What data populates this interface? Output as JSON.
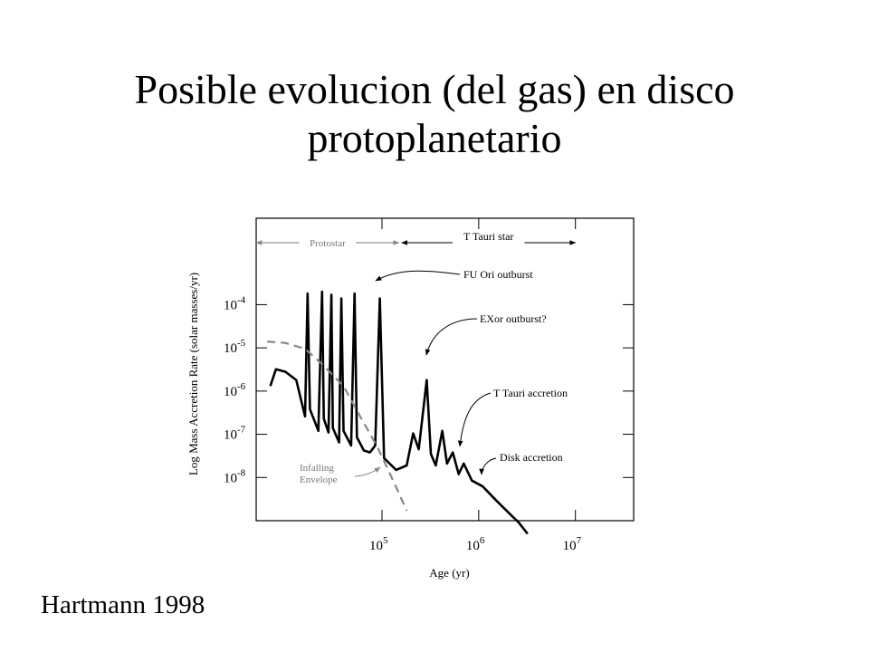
{
  "slide": {
    "title_line1": "Posible evolucion (del gas) en disco",
    "title_line2": "protoplanetario",
    "caption": "Hartmann 1998"
  },
  "chart_data": {
    "type": "line",
    "title": "",
    "xlabel": "Age (yr)",
    "ylabel": "Log Mass Accretion Rate (solar masses/yr)",
    "x_scale": "log",
    "y_scale": "log",
    "x_ticks": [
      {
        "base": "10",
        "exp": "5",
        "value": 100000
      },
      {
        "base": "10",
        "exp": "6",
        "value": 1000000
      },
      {
        "base": "10",
        "exp": "7",
        "value": 10000000
      }
    ],
    "y_ticks": [
      {
        "base": "10",
        "exp": "-4",
        "value": 0.0001
      },
      {
        "base": "10",
        "exp": "-5",
        "value": 1e-05
      },
      {
        "base": "10",
        "exp": "-6",
        "value": 1e-06
      },
      {
        "base": "10",
        "exp": "-7",
        "value": 1e-07
      },
      {
        "base": "10",
        "exp": "-8",
        "value": 1e-08
      }
    ],
    "xlim": [
      5000,
      40000000
    ],
    "ylim": [
      1e-09,
      0.01
    ],
    "phases": [
      {
        "label": "Protostar",
        "x_start": 5000,
        "x_end": 150000
      },
      {
        "label": "T Tauri star",
        "x_start": 160000,
        "x_end": 10000000
      }
    ],
    "annotations": [
      {
        "label": "FU Ori outburst"
      },
      {
        "label": "EXor outburst?"
      },
      {
        "label": "T Tauri accretion"
      },
      {
        "label": "Disk accretion"
      },
      {
        "label": "Infalling Envelope"
      }
    ],
    "series": [
      {
        "style": "solid",
        "color": "#000000",
        "points": [
          [
            7000,
            1.3e-06
          ],
          [
            8000,
            3.2e-06
          ],
          [
            10000,
            2.8e-06
          ],
          [
            13000,
            1.8e-06
          ],
          [
            16000,
            2.6e-07
          ],
          [
            17000,
            0.00018
          ],
          [
            18000,
            3.8e-07
          ],
          [
            22000,
            1.2e-07
          ],
          [
            24000,
            0.0002
          ],
          [
            25000,
            2.3e-07
          ],
          [
            28000,
            1.1e-07
          ],
          [
            30000,
            0.00017
          ],
          [
            31000,
            1.4e-07
          ],
          [
            36000,
            6.5e-08
          ],
          [
            38000,
            0.00014
          ],
          [
            40000,
            1.2e-07
          ],
          [
            48000,
            5.5e-08
          ],
          [
            52000,
            0.00018
          ],
          [
            55000,
            8.5e-08
          ],
          [
            65000,
            4.2e-08
          ],
          [
            75000,
            3.8e-08
          ],
          [
            85000,
            5.5e-08
          ],
          [
            95000,
            0.00014
          ],
          [
            105000,
            2.8e-08
          ],
          [
            140000,
            1.5e-08
          ],
          [
            180000,
            1.9e-08
          ],
          [
            210000,
            1.05e-07
          ],
          [
            240000,
            4.5e-08
          ],
          [
            290000,
            1.8e-06
          ],
          [
            320000,
            3.5e-08
          ],
          [
            360000,
            1.9e-08
          ],
          [
            420000,
            1.2e-07
          ],
          [
            470000,
            2.1e-08
          ],
          [
            540000,
            3.8e-08
          ],
          [
            620000,
            1.2e-08
          ],
          [
            700000,
            2.1e-08
          ],
          [
            850000,
            8.5e-09
          ],
          [
            1100000,
            6.2e-09
          ],
          [
            1500000,
            3e-09
          ],
          [
            2000000,
            1.6e-09
          ],
          [
            2600000,
            9e-10
          ],
          [
            3200000,
            5e-10
          ]
        ]
      },
      {
        "name": "Infalling Envelope",
        "style": "dashed",
        "color": "#888888",
        "points": [
          [
            6500,
            1.4e-05
          ],
          [
            10000,
            1.3e-05
          ],
          [
            16000,
            9.5e-06
          ],
          [
            24000,
            4.2e-06
          ],
          [
            40000,
            1.3e-06
          ],
          [
            60000,
            2.5e-07
          ],
          [
            90000,
            5e-08
          ],
          [
            140000,
            6e-09
          ],
          [
            180000,
            1.7e-09
          ]
        ]
      }
    ]
  }
}
